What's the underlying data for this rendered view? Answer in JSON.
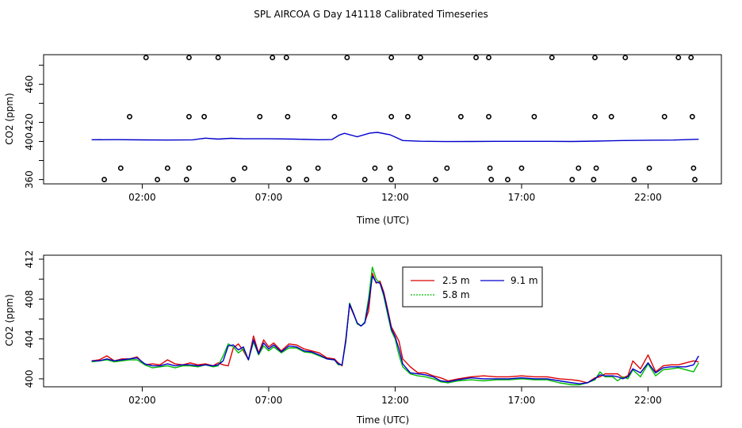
{
  "title": "SPL AIRCOA G  Day 141118  Calibrated Timeseries",
  "chart_data": [
    {
      "type": "line",
      "xlabel": "Time (UTC)",
      "ylabel": "CO2 (ppm)",
      "x_ticks": [
        "02:00",
        "07:00",
        "12:00",
        "17:00",
        "22:00"
      ],
      "x_tick_hours": [
        2,
        7,
        12,
        17,
        22
      ],
      "y_ticks": [
        360,
        380,
        400,
        420,
        440,
        460,
        480
      ],
      "y_tick_labels": [
        "360",
        "",
        "400",
        "420",
        "",
        "460",
        ""
      ],
      "xlim": [
        -1.9,
        24.9
      ],
      "ylim": [
        355.5,
        491
      ],
      "line_color": "#0000cc",
      "line": {
        "x": [
          0.0,
          1.0,
          2.0,
          3.0,
          4.0,
          4.5,
          5.0,
          5.5,
          6.0,
          7.0,
          8.0,
          9.0,
          9.5,
          9.8,
          10.0,
          10.5,
          11.0,
          11.3,
          11.8,
          12.3,
          13.0,
          14.0,
          15.0,
          16.0,
          17.0,
          18.0,
          19.0,
          20.0,
          21.0,
          22.0,
          23.0,
          24.0
        ],
        "y": [
          401.8,
          401.9,
          401.6,
          401.5,
          401.7,
          403.5,
          402.5,
          403.3,
          402.8,
          402.8,
          402.5,
          401.8,
          402.0,
          406.8,
          408.5,
          405.0,
          408.8,
          409.5,
          407.0,
          401.0,
          400.2,
          399.9,
          400.0,
          400.1,
          400.1,
          400.1,
          400.0,
          400.4,
          401.0,
          401.3,
          401.5,
          402.3
        ]
      },
      "points": {
        "x": [
          2.15,
          3.85,
          5.0,
          7.15,
          7.7,
          10.1,
          11.85,
          13.0,
          15.2,
          15.7,
          18.2,
          19.9,
          21.1,
          23.2,
          23.7,
          1.5,
          3.85,
          4.45,
          6.65,
          7.75,
          9.6,
          11.85,
          12.5,
          14.6,
          15.7,
          17.5,
          19.9,
          20.55,
          22.65,
          23.75,
          1.15,
          3.0,
          3.85,
          6.05,
          7.8,
          8.95,
          11.2,
          11.8,
          14.05,
          15.75,
          17.0,
          19.25,
          19.95,
          22.05,
          23.8,
          0.5,
          2.6,
          3.75,
          5.6,
          7.8,
          8.5,
          10.8,
          11.85,
          13.6,
          15.8,
          16.45,
          19.0,
          19.85,
          21.45,
          23.85
        ],
        "y": [
          488,
          488,
          488,
          488,
          488,
          488,
          488,
          488,
          488,
          488,
          488,
          488,
          488,
          488,
          488,
          426,
          426,
          426,
          426,
          426,
          426,
          426,
          426,
          426,
          426,
          426,
          426,
          426,
          426,
          426,
          372,
          372,
          372,
          372,
          372,
          372,
          372,
          372,
          372,
          372,
          372,
          372,
          372,
          372,
          372,
          360,
          360,
          360,
          360,
          360,
          360,
          360,
          360,
          360,
          360,
          360,
          360,
          360,
          360,
          360
        ]
      }
    },
    {
      "type": "line",
      "xlabel": "Time (UTC)",
      "ylabel": "CO2 (ppm)",
      "x_ticks": [
        "02:00",
        "07:00",
        "12:00",
        "17:00",
        "22:00"
      ],
      "x_tick_hours": [
        2,
        7,
        12,
        17,
        22
      ],
      "y_ticks": [
        400,
        402,
        404,
        406,
        408,
        410,
        412
      ],
      "y_tick_labels": [
        "400",
        "",
        "404",
        "",
        "408",
        "",
        "412"
      ],
      "xlim": [
        -1.9,
        24.9
      ],
      "ylim": [
        399.2,
        412.4
      ],
      "legend_position": "top-right",
      "series": [
        {
          "name": "2.5 m",
          "color": "#dd0000",
          "x": [
            0.0,
            0.3,
            0.6,
            0.9,
            1.2,
            1.5,
            1.8,
            2.1,
            2.4,
            2.7,
            3.0,
            3.3,
            3.6,
            3.9,
            4.2,
            4.5,
            4.8,
            5.0,
            5.2,
            5.4,
            5.6,
            5.8,
            6.0,
            6.2,
            6.4,
            6.6,
            6.8,
            7.0,
            7.2,
            7.5,
            7.8,
            8.1,
            8.4,
            8.7,
            9.0,
            9.3,
            9.6,
            9.75,
            9.9,
            10.05,
            10.2,
            10.35,
            10.5,
            10.65,
            10.8,
            10.95,
            11.1,
            11.25,
            11.4,
            11.55,
            11.7,
            11.85,
            12.0,
            12.15,
            12.3,
            12.6,
            12.9,
            13.2,
            13.5,
            13.8,
            14.1,
            14.5,
            15.0,
            15.5,
            16.0,
            16.5,
            17.0,
            17.5,
            18.0,
            18.5,
            19.0,
            19.3,
            19.6,
            19.9,
            20.1,
            20.3,
            20.6,
            20.8,
            21.0,
            21.2,
            21.4,
            21.7,
            22.0,
            22.3,
            22.6,
            22.9,
            23.2,
            23.5,
            23.8,
            24.0
          ],
          "y": [
            401.8,
            401.9,
            402.3,
            401.8,
            402.0,
            402.0,
            402.2,
            401.4,
            401.5,
            401.4,
            401.9,
            401.5,
            401.4,
            401.6,
            401.4,
            401.5,
            401.3,
            401.6,
            401.4,
            401.3,
            403.1,
            403.5,
            402.8,
            401.9,
            404.3,
            402.6,
            403.9,
            403.2,
            403.6,
            402.8,
            403.5,
            403.4,
            403.0,
            402.8,
            402.6,
            402.1,
            402.0,
            401.6,
            401.3,
            404.0,
            407.4,
            406.5,
            405.6,
            405.3,
            405.7,
            406.8,
            410.6,
            409.6,
            409.8,
            408.7,
            407.0,
            405.2,
            404.5,
            403.8,
            402.0,
            401.2,
            400.6,
            400.6,
            400.3,
            400.1,
            399.8,
            400.0,
            400.2,
            400.3,
            400.2,
            400.2,
            400.3,
            400.2,
            400.2,
            400.0,
            399.9,
            399.8,
            399.6,
            400.1,
            400.2,
            400.5,
            400.5,
            400.5,
            400.1,
            400.3,
            401.8,
            401.0,
            402.4,
            400.7,
            401.3,
            401.4,
            401.4,
            401.6,
            401.8,
            401.7
          ]
        },
        {
          "name": "5.8 m",
          "color": "#00bb00",
          "x": [
            0.0,
            0.3,
            0.6,
            0.9,
            1.2,
            1.5,
            1.8,
            2.1,
            2.4,
            2.7,
            3.0,
            3.3,
            3.6,
            3.9,
            4.2,
            4.5,
            4.8,
            5.0,
            5.2,
            5.4,
            5.6,
            5.8,
            6.0,
            6.2,
            6.4,
            6.6,
            6.8,
            7.0,
            7.2,
            7.5,
            7.8,
            8.1,
            8.4,
            8.7,
            9.0,
            9.3,
            9.6,
            9.75,
            9.9,
            10.05,
            10.2,
            10.35,
            10.5,
            10.65,
            10.8,
            10.95,
            11.1,
            11.25,
            11.4,
            11.55,
            11.7,
            11.85,
            12.0,
            12.15,
            12.3,
            12.6,
            12.9,
            13.2,
            13.5,
            13.8,
            14.1,
            14.5,
            15.0,
            15.5,
            16.0,
            16.5,
            17.0,
            17.5,
            18.0,
            18.5,
            19.0,
            19.3,
            19.6,
            19.9,
            20.1,
            20.3,
            20.6,
            20.8,
            21.0,
            21.2,
            21.4,
            21.7,
            22.0,
            22.3,
            22.6,
            22.9,
            23.2,
            23.5,
            23.8,
            24.0
          ],
          "y": [
            401.7,
            401.8,
            401.9,
            401.7,
            401.8,
            401.9,
            401.9,
            401.4,
            401.1,
            401.2,
            401.3,
            401.1,
            401.3,
            401.3,
            401.2,
            401.4,
            401.2,
            401.3,
            402.3,
            403.5,
            403.2,
            402.6,
            403.0,
            401.9,
            403.7,
            402.4,
            403.3,
            402.8,
            403.2,
            402.6,
            403.1,
            403.1,
            402.7,
            402.6,
            402.3,
            402.0,
            401.9,
            401.4,
            401.4,
            403.7,
            407.6,
            406.6,
            405.5,
            405.3,
            405.7,
            408.1,
            411.2,
            410.0,
            409.6,
            408.3,
            406.5,
            404.8,
            404.0,
            402.4,
            401.2,
            400.5,
            400.3,
            400.2,
            400.0,
            399.7,
            399.6,
            399.8,
            399.9,
            399.8,
            399.9,
            399.9,
            400.0,
            399.9,
            399.9,
            399.6,
            399.4,
            399.4,
            399.6,
            399.9,
            400.7,
            400.2,
            400.2,
            399.8,
            400.2,
            400.0,
            400.9,
            400.2,
            401.5,
            400.3,
            400.9,
            401.0,
            401.1,
            400.9,
            400.7,
            401.6
          ]
        },
        {
          "name": "9.1 m",
          "color": "#0000cc",
          "x": [
            0.0,
            0.3,
            0.6,
            0.9,
            1.2,
            1.5,
            1.8,
            2.1,
            2.4,
            2.7,
            3.0,
            3.3,
            3.6,
            3.9,
            4.2,
            4.5,
            4.8,
            5.0,
            5.2,
            5.4,
            5.6,
            5.8,
            6.0,
            6.2,
            6.4,
            6.6,
            6.8,
            7.0,
            7.2,
            7.5,
            7.8,
            8.1,
            8.4,
            8.7,
            9.0,
            9.3,
            9.6,
            9.75,
            9.9,
            10.05,
            10.2,
            10.35,
            10.5,
            10.65,
            10.8,
            10.95,
            11.1,
            11.25,
            11.4,
            11.55,
            11.7,
            11.85,
            12.0,
            12.15,
            12.3,
            12.6,
            12.9,
            13.2,
            13.5,
            13.8,
            14.1,
            14.5,
            15.0,
            15.5,
            16.0,
            16.5,
            17.0,
            17.5,
            18.0,
            18.5,
            19.0,
            19.3,
            19.6,
            19.9,
            20.1,
            20.3,
            20.6,
            20.8,
            21.0,
            21.2,
            21.4,
            21.7,
            22.0,
            22.3,
            22.6,
            22.9,
            23.2,
            23.5,
            23.8,
            24.0
          ],
          "y": [
            401.8,
            401.8,
            402.0,
            401.8,
            401.9,
            402.0,
            402.1,
            401.5,
            401.3,
            401.3,
            401.5,
            401.3,
            401.4,
            401.4,
            401.3,
            401.4,
            401.3,
            401.4,
            401.8,
            403.3,
            403.4,
            402.9,
            403.2,
            401.9,
            403.9,
            402.5,
            403.6,
            403.0,
            403.4,
            402.7,
            403.3,
            403.2,
            402.8,
            402.7,
            402.4,
            402.0,
            401.9,
            401.5,
            401.4,
            403.8,
            407.5,
            406.6,
            405.6,
            405.3,
            405.6,
            407.6,
            410.3,
            409.7,
            409.6,
            408.5,
            406.8,
            405.0,
            404.2,
            403.0,
            401.5,
            400.6,
            400.5,
            400.4,
            400.2,
            399.8,
            399.7,
            399.9,
            400.1,
            400.0,
            400.0,
            400.0,
            400.1,
            400.0,
            400.0,
            399.8,
            399.6,
            399.5,
            399.6,
            400.0,
            400.4,
            400.3,
            400.3,
            400.2,
            400.0,
            400.2,
            401.0,
            400.6,
            401.6,
            400.6,
            401.1,
            401.2,
            401.2,
            401.2,
            401.4,
            402.3
          ]
        }
      ]
    }
  ]
}
